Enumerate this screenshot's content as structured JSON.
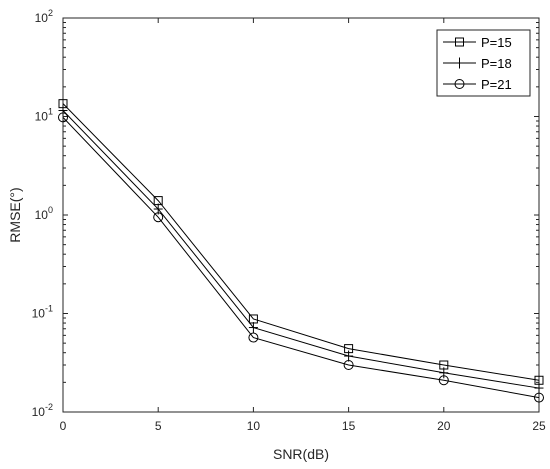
{
  "chart_data": {
    "type": "line",
    "xlabel": "SNR(dB)",
    "ylabel": "RMSE(°)",
    "xlim": [
      0,
      25
    ],
    "ylim": [
      0.01,
      100
    ],
    "yscale": "log",
    "grid": false,
    "legend_position": "top-right",
    "x": [
      0,
      5,
      10,
      15,
      20,
      25
    ],
    "x_ticks": [
      "0",
      "5",
      "10",
      "15",
      "20",
      "25"
    ],
    "y_ticks": [
      {
        "value": 0.01,
        "base": "10",
        "exp": "-2"
      },
      {
        "value": 0.1,
        "base": "10",
        "exp": "-1"
      },
      {
        "value": 1,
        "base": "10",
        "exp": "0"
      },
      {
        "value": 10,
        "base": "10",
        "exp": "1"
      },
      {
        "value": 100,
        "base": "10",
        "exp": "2"
      }
    ],
    "series": [
      {
        "name": "P=15",
        "marker": "square",
        "values": [
          13.5,
          1.4,
          0.088,
          0.044,
          0.03,
          0.021
        ]
      },
      {
        "name": "P=18",
        "marker": "plus",
        "values": [
          11.5,
          1.15,
          0.072,
          0.037,
          0.025,
          0.0175
        ]
      },
      {
        "name": "P=21",
        "marker": "circle",
        "values": [
          9.8,
          0.95,
          0.057,
          0.03,
          0.021,
          0.014
        ]
      }
    ],
    "colors": {
      "line": "#000000",
      "axis": "#262626"
    }
  }
}
